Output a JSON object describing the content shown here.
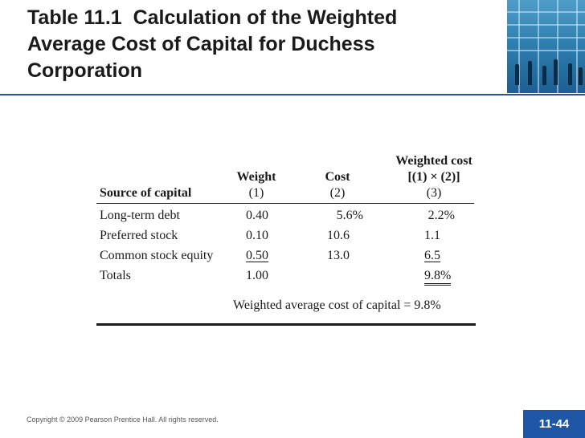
{
  "slide": {
    "title_number": "Table 11.1",
    "title_text": "Calculation of the Weighted Average Cost of Capital for Duchess Corporation"
  },
  "table": {
    "headers": {
      "source": "Source of capital",
      "weight_top": "Weight",
      "weight_sub": "(1)",
      "cost_top": "Cost",
      "cost_sub": "(2)",
      "wcost_top": "Weighted cost",
      "wcost_formula": "[(1) × (2)]",
      "wcost_sub": "(3)"
    },
    "rows": [
      {
        "source": "Long-term debt",
        "weight": "0.40",
        "cost": "5.6%",
        "weighted": "2.2%"
      },
      {
        "source": "Preferred stock",
        "weight": "0.10",
        "cost": "10.6",
        "weighted": "1.1"
      },
      {
        "source": "Common stock equity",
        "weight": "0.50",
        "cost": "13.0",
        "weighted": "6.5"
      }
    ],
    "totals": {
      "label": "Totals",
      "weight": "1.00",
      "weighted": "9.8%"
    },
    "summary": "Weighted average cost of capital = 9.8%"
  },
  "footer": {
    "copyright": "Copyright © 2009 Pearson Prentice Hall. All rights reserved.",
    "page": "11-44"
  }
}
